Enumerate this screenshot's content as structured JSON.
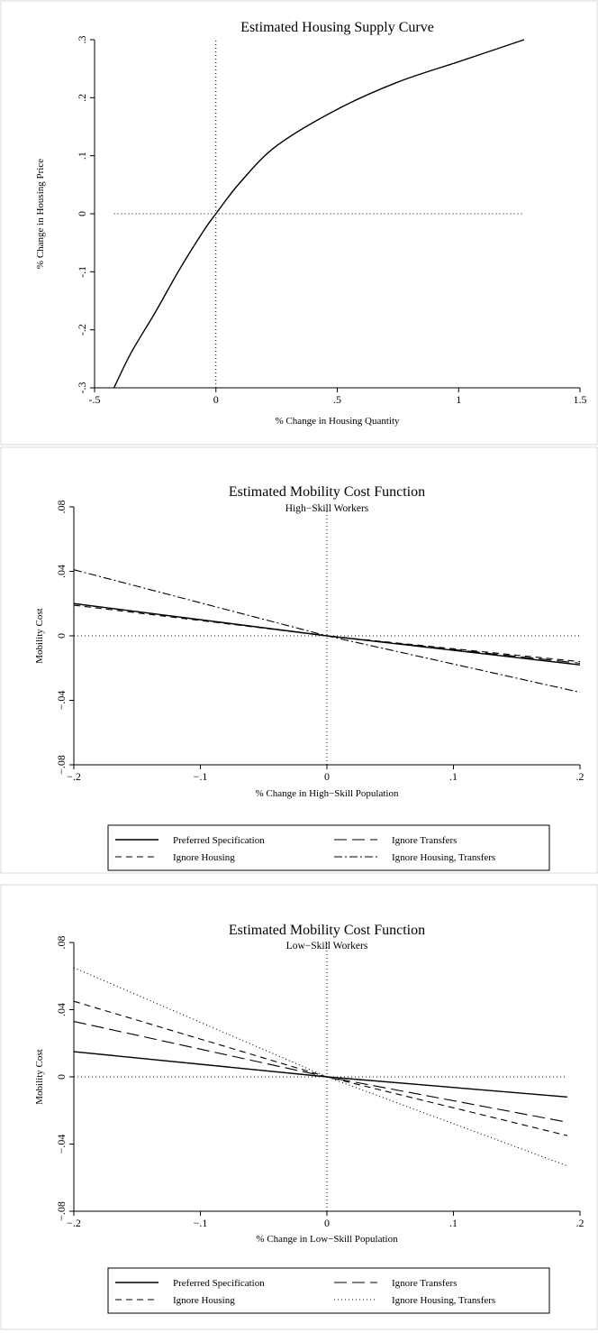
{
  "chart_data": [
    {
      "type": "line",
      "title": "Estimated Housing Supply Curve",
      "subtitle": "",
      "xlabel": "% Change in Housing Quantity",
      "ylabel": "% Change in Housing Price",
      "xlim": [
        -0.5,
        1.5
      ],
      "ylim": [
        -0.3,
        0.3
      ],
      "xticks": [
        {
          "v": -0.5,
          "label": "-.5"
        },
        {
          "v": 0,
          "label": "0"
        },
        {
          "v": 0.5,
          "label": ".5"
        },
        {
          "v": 1,
          "label": "1"
        },
        {
          "v": 1.5,
          "label": "1.5"
        }
      ],
      "yticks": [
        {
          "v": -0.3,
          "label": "-.3"
        },
        {
          "v": -0.2,
          "label": "-.2"
        },
        {
          "v": -0.1,
          "label": "-.1"
        },
        {
          "v": 0,
          "label": "0"
        },
        {
          "v": 0.1,
          "label": ".1"
        },
        {
          "v": 0.2,
          "label": ".2"
        },
        {
          "v": 0.3,
          "label": ".3"
        }
      ],
      "ref_h": {
        "y": 0,
        "x": [
          -0.42,
          1.27
        ]
      },
      "ref_v": {
        "x": 0,
        "y": [
          -0.3,
          0.3
        ]
      },
      "series": [
        {
          "style": "solid",
          "x": [
            -0.42,
            -0.35,
            -0.25,
            -0.15,
            -0.05,
            0,
            0.1,
            0.25,
            0.5,
            0.75,
            1.0,
            1.27
          ],
          "y": [
            -0.3,
            -0.24,
            -0.17,
            -0.096,
            -0.029,
            0,
            0.054,
            0.117,
            0.18,
            0.227,
            0.262,
            0.3
          ]
        }
      ],
      "legend": []
    },
    {
      "type": "line",
      "title": "Estimated Mobility Cost Function",
      "subtitle": "High−Skill Workers",
      "xlabel": "% Change in High−Skill Population",
      "ylabel": "Mobility Cost",
      "xlim": [
        -0.2,
        0.2
      ],
      "ylim": [
        -0.08,
        0.08
      ],
      "xticks": [
        {
          "v": -0.2,
          "label": "−.2"
        },
        {
          "v": -0.1,
          "label": "−.1"
        },
        {
          "v": 0,
          "label": "0"
        },
        {
          "v": 0.1,
          "label": ".1"
        },
        {
          "v": 0.2,
          "label": ".2"
        }
      ],
      "yticks": [
        {
          "v": -0.08,
          "label": "−.08"
        },
        {
          "v": -0.04,
          "label": "−.04"
        },
        {
          "v": 0,
          "label": "0"
        },
        {
          "v": 0.04,
          "label": ".04"
        },
        {
          "v": 0.08,
          "label": ".08"
        }
      ],
      "ref_h": {
        "y": 0,
        "x": [
          -0.2,
          0.2
        ]
      },
      "ref_v": {
        "x": 0,
        "y": [
          -0.08,
          0.08
        ]
      },
      "series": [
        {
          "name": "Preferred Specification",
          "style": "solid",
          "x": [
            -0.2,
            0,
            0.2
          ],
          "y": [
            0.02,
            0,
            -0.018
          ]
        },
        {
          "name": "Ignore Transfers",
          "style": "longdash",
          "x": [
            -0.2,
            0,
            0.2
          ],
          "y": [
            0.02,
            0,
            -0.017
          ]
        },
        {
          "name": "Ignore Housing",
          "style": "dash",
          "x": [
            -0.2,
            0,
            0.2
          ],
          "y": [
            0.019,
            0,
            -0.016
          ]
        },
        {
          "name": "Ignore Housing, Transfers",
          "style": "dashdot",
          "x": [
            -0.2,
            0,
            0.2
          ],
          "y": [
            0.041,
            0,
            -0.035
          ]
        }
      ],
      "legend": [
        "Preferred Specification",
        "Ignore Transfers",
        "Ignore Housing",
        "Ignore Housing, Transfers"
      ]
    },
    {
      "type": "line",
      "title": "Estimated Mobility Cost Function",
      "subtitle": "Low−Skill Workers",
      "xlabel": "% Change in Low−Skill Population",
      "ylabel": "Mobility Cost",
      "xlim": [
        -0.2,
        0.2
      ],
      "ylim": [
        -0.08,
        0.08
      ],
      "xticks": [
        {
          "v": -0.2,
          "label": "−.2"
        },
        {
          "v": -0.1,
          "label": "−.1"
        },
        {
          "v": 0,
          "label": "0"
        },
        {
          "v": 0.1,
          "label": ".1"
        },
        {
          "v": 0.2,
          "label": ".2"
        }
      ],
      "yticks": [
        {
          "v": -0.08,
          "label": "−.08"
        },
        {
          "v": -0.04,
          "label": "−.04"
        },
        {
          "v": 0,
          "label": "0"
        },
        {
          "v": 0.04,
          "label": ".04"
        },
        {
          "v": 0.08,
          "label": ".08"
        }
      ],
      "ref_h": {
        "y": 0,
        "x": [
          -0.2,
          0.19
        ]
      },
      "ref_v": {
        "x": 0,
        "y": [
          -0.08,
          0.08
        ]
      },
      "series": [
        {
          "name": "Preferred Specification",
          "style": "solid",
          "x": [
            -0.2,
            0,
            0.19
          ],
          "y": [
            0.015,
            0,
            -0.012
          ]
        },
        {
          "name": "Ignore Transfers",
          "style": "longdash",
          "x": [
            -0.2,
            0,
            0.19
          ],
          "y": [
            0.033,
            0,
            -0.027
          ]
        },
        {
          "name": "Ignore Housing",
          "style": "dash",
          "x": [
            -0.2,
            0,
            0.19
          ],
          "y": [
            0.045,
            0,
            -0.035
          ]
        },
        {
          "name": "Ignore Housing, Transfers",
          "style": "dot",
          "x": [
            -0.2,
            0,
            0.19
          ],
          "y": [
            0.065,
            0,
            -0.053
          ]
        }
      ],
      "legend": [
        "Preferred Specification",
        "Ignore Transfers",
        "Ignore Housing",
        "Ignore Housing, Transfers"
      ]
    }
  ]
}
